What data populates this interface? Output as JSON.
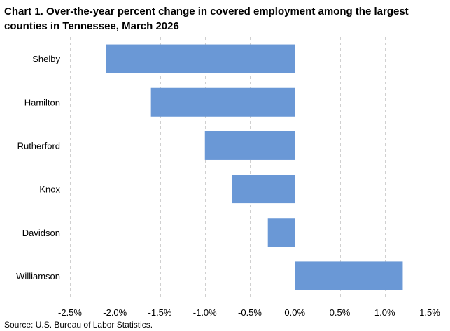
{
  "chart_data": {
    "type": "bar",
    "orientation": "horizontal",
    "title": "Chart 1. Over-the-year percent change in covered employment among the largest counties in Tennessee, March 2026",
    "categories": [
      "Shelby",
      "Hamilton",
      "Rutherford",
      "Knox",
      "Davidson",
      "Williamson"
    ],
    "values": [
      -2.1,
      -1.6,
      -1.0,
      -0.7,
      -0.3,
      1.2
    ],
    "xlim": [
      -2.5,
      1.5
    ],
    "x_ticks": [
      -2.5,
      -2.0,
      -1.5,
      -1.0,
      -0.5,
      0.0,
      0.5,
      1.0,
      1.5
    ],
    "x_tick_labels": [
      "-2.5%",
      "-2.0%",
      "-1.5%",
      "-1.0%",
      "-0.5%",
      "0.0%",
      "0.5%",
      "1.0%",
      "1.5%"
    ],
    "xlabel": "",
    "ylabel": "",
    "grid": "vertical dashed",
    "bar_color": "#6a98d6",
    "source": "Source: U.S. Bureau of Labor Statistics."
  }
}
